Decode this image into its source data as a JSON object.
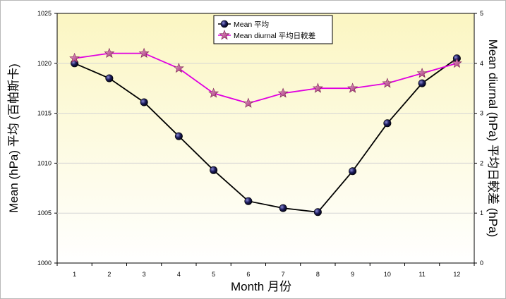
{
  "chart_data": {
    "type": "line",
    "categories": [
      "1",
      "2",
      "3",
      "4",
      "5",
      "6",
      "7",
      "8",
      "9",
      "10",
      "11",
      "12"
    ],
    "xlabel": "Month 月份",
    "ylabel_left": "Mean (hPa) 平均 (百帕斯卡)",
    "ylabel_right": "Mean diurnal (hPa) 平均日較差 (hPa)",
    "ylim_left": [
      1000,
      1025
    ],
    "yticks_left": [
      "1000",
      "1005",
      "1010",
      "1015",
      "1020",
      "1025"
    ],
    "ylim_right": [
      0,
      5
    ],
    "yticks_right": [
      "0",
      "1",
      "2",
      "3",
      "4",
      "5"
    ],
    "legend_position": "top-center",
    "series": [
      {
        "name": "Mean 平均",
        "axis": "left",
        "marker": "circle",
        "color": "#000000",
        "marker_color": "#1a1a5e",
        "values": [
          1020.0,
          1018.5,
          1016.1,
          1012.7,
          1009.3,
          1006.2,
          1005.5,
          1005.1,
          1009.2,
          1014.0,
          1018.0,
          1020.5
        ]
      },
      {
        "name": "Mean diurnal 平均日較差",
        "axis": "right",
        "marker": "star",
        "color": "#e000e0",
        "marker_color": "#b0307a",
        "values": [
          4.1,
          4.2,
          4.2,
          3.9,
          3.4,
          3.2,
          3.4,
          3.5,
          3.5,
          3.6,
          3.8,
          4.0
        ]
      }
    ]
  }
}
